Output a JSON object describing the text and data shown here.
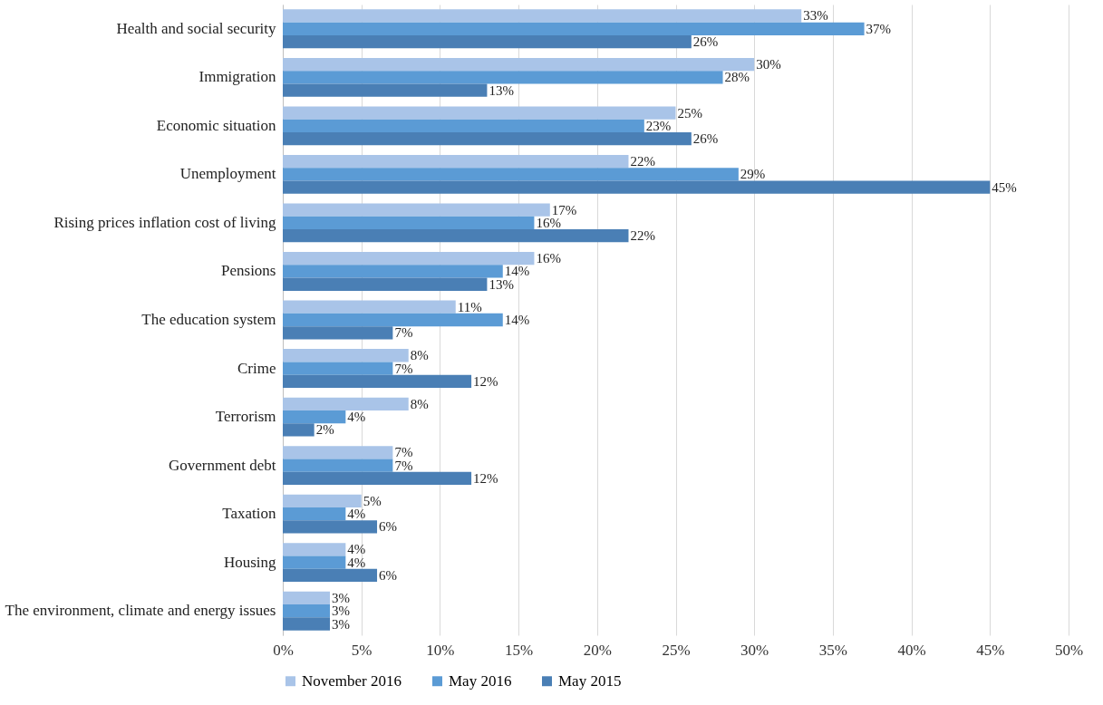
{
  "chart_data": {
    "type": "bar",
    "orientation": "horizontal",
    "categories": [
      "Health and social security",
      "Immigration",
      "Economic situation",
      "Unemployment",
      "Rising prices inflation cost of living",
      "Pensions",
      "The education system",
      "Crime",
      "Terrorism",
      "Government debt",
      "Taxation",
      "Housing",
      "The environment, climate and energy issues"
    ],
    "series": [
      {
        "name": "November 2016",
        "color": "#a9c4e8",
        "values": [
          33,
          30,
          25,
          22,
          17,
          16,
          11,
          8,
          8,
          7,
          5,
          4,
          3
        ],
        "value_labels": [
          "33%",
          "30%",
          "25%",
          "22%",
          "17%",
          "16%",
          "11%",
          "8%",
          "8%",
          "7%",
          "5%",
          "4%",
          "3%"
        ]
      },
      {
        "name": "May 2016",
        "color": "#5b9bd5",
        "values": [
          37,
          28,
          23,
          29,
          16,
          14,
          14,
          7,
          4,
          7,
          4,
          4,
          3
        ],
        "value_labels": [
          "37%",
          "28%",
          "23%",
          "29%",
          "16%",
          "14%",
          "14%",
          "7%",
          "4%",
          "7%",
          "4%",
          "4%",
          "3%"
        ]
      },
      {
        "name": "May 2015",
        "color": "#4a7fb5",
        "values": [
          26,
          13,
          26,
          45,
          22,
          13,
          7,
          12,
          2,
          12,
          6,
          6,
          3
        ],
        "value_labels": [
          "26%",
          "13%",
          "26%",
          "45%",
          "22%",
          "13%",
          "7%",
          "12%",
          "2%",
          "12%",
          "6%",
          "6%",
          "3%"
        ]
      }
    ],
    "xlim": [
      0,
      50
    ],
    "xticks": [
      {
        "value": 0,
        "label": "0%"
      },
      {
        "value": 5,
        "label": "5%"
      },
      {
        "value": 10,
        "label": "10%"
      },
      {
        "value": 15,
        "label": "15%"
      },
      {
        "value": 20,
        "label": "20%"
      },
      {
        "value": 25,
        "label": "25%"
      },
      {
        "value": 30,
        "label": "30%"
      },
      {
        "value": 35,
        "label": "35%"
      },
      {
        "value": 40,
        "label": "40%"
      },
      {
        "value": 45,
        "label": "45%"
      },
      {
        "value": 50,
        "label": "50%"
      }
    ],
    "grid": "x",
    "legend": "bottom"
  }
}
